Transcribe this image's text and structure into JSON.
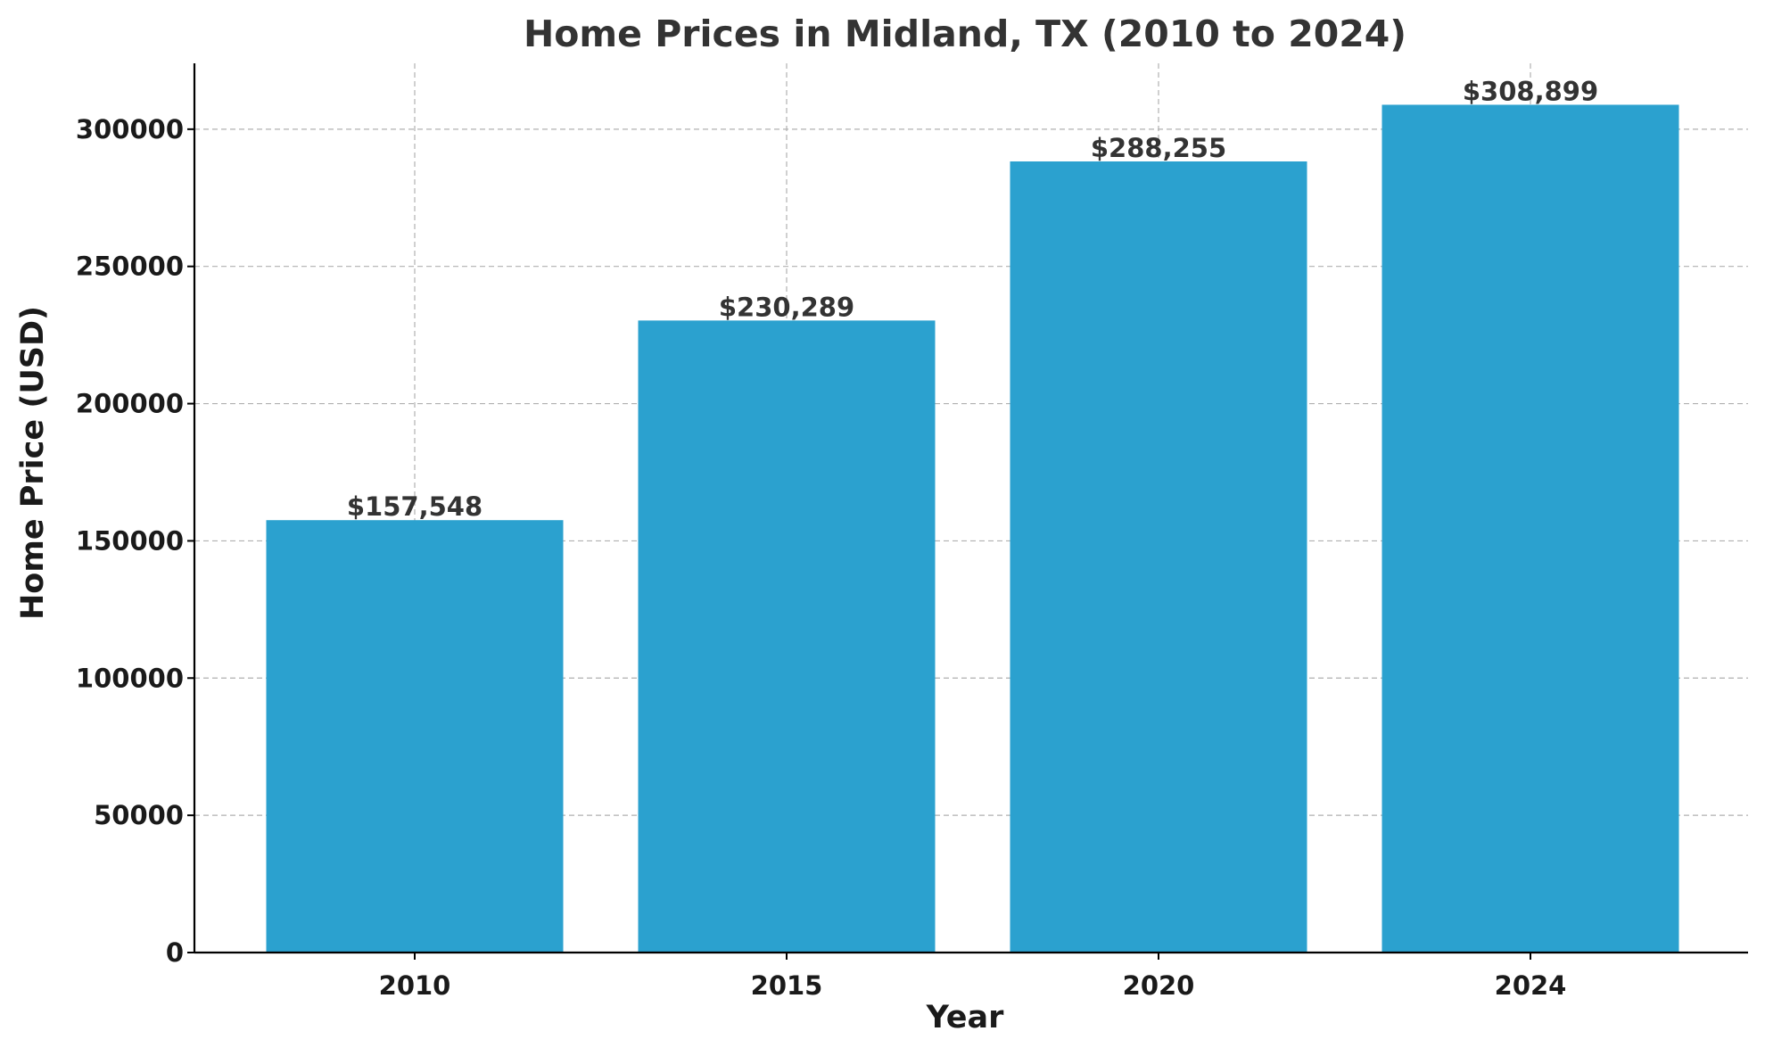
{
  "chart_data": {
    "type": "bar",
    "title": "Home Prices in Midland, TX (2010 to 2024)",
    "xlabel": "Year",
    "ylabel": "Home Price (USD)",
    "categories": [
      "2010",
      "2015",
      "2020",
      "2024"
    ],
    "values": [
      157548,
      230289,
      288255,
      308899
    ],
    "data_labels": [
      "$157,548",
      "$230,289",
      "$288,255",
      "$308,899"
    ],
    "ylim": [
      0,
      324000
    ],
    "yticks": [
      0,
      50000,
      100000,
      150000,
      200000,
      250000,
      300000
    ],
    "ytick_labels": [
      "0",
      "50000",
      "100000",
      "150000",
      "200000",
      "250000",
      "300000"
    ],
    "grid": true,
    "bar_color": "#2ba1cf"
  }
}
